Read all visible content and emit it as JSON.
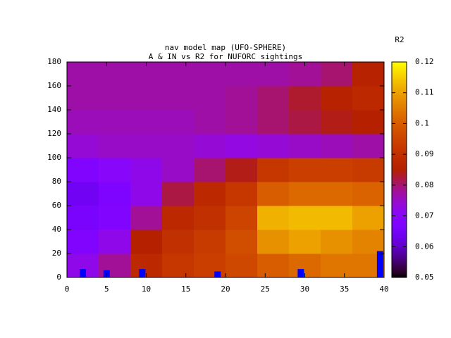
{
  "chart_data": {
    "type": "heatmap",
    "title": "nav model map (UFO-SPHERE)",
    "subtitle": "A & IN vs R2 for NUFORC sightings",
    "colorbar_label": "R2",
    "colormap": "gnuplot",
    "xbins": [
      0,
      4,
      8,
      12,
      16,
      20,
      24,
      28,
      32,
      36,
      40
    ],
    "ybins": [
      0,
      20,
      40,
      60,
      80,
      100,
      120,
      140,
      160,
      180
    ],
    "z": [
      [
        0.072,
        0.078,
        0.088,
        0.092,
        0.094,
        0.096,
        0.1,
        0.102,
        0.104,
        0.104
      ],
      [
        0.068,
        0.072,
        0.085,
        0.09,
        0.093,
        0.097,
        0.108,
        0.11,
        0.108,
        0.106
      ],
      [
        0.066,
        0.068,
        0.078,
        0.088,
        0.09,
        0.095,
        0.112,
        0.113,
        0.113,
        0.11
      ],
      [
        0.064,
        0.067,
        0.072,
        0.082,
        0.088,
        0.092,
        0.1,
        0.102,
        0.102,
        0.101
      ],
      [
        0.068,
        0.07,
        0.072,
        0.075,
        0.08,
        0.084,
        0.092,
        0.094,
        0.094,
        0.093
      ],
      [
        0.074,
        0.075,
        0.075,
        0.075,
        0.074,
        0.073,
        0.074,
        0.075,
        0.076,
        0.077
      ],
      [
        0.076,
        0.076,
        0.076,
        0.076,
        0.077,
        0.078,
        0.08,
        0.082,
        0.084,
        0.085
      ],
      [
        0.077,
        0.077,
        0.077,
        0.077,
        0.077,
        0.078,
        0.08,
        0.083,
        0.086,
        0.088
      ],
      [
        0.077,
        0.077,
        0.077,
        0.077,
        0.077,
        0.077,
        0.077,
        0.078,
        0.08,
        0.086
      ]
    ],
    "zlim": [
      0.05,
      0.12
    ],
    "zticks": [
      0.05,
      0.06,
      0.07,
      0.08,
      0.09,
      0.1,
      0.11,
      0.12
    ],
    "bars": {
      "color": "#0000ff",
      "x": [
        2,
        5,
        9.5,
        19,
        29.5,
        39.5
      ],
      "values": [
        7,
        6,
        7,
        5,
        7,
        22
      ]
    },
    "xlim": [
      0,
      40
    ],
    "xticks": [
      0,
      5,
      10,
      15,
      20,
      25,
      30,
      35,
      40
    ],
    "ylim": [
      0,
      180
    ],
    "yticks": [
      0,
      20,
      40,
      60,
      80,
      100,
      120,
      140,
      160,
      180
    ]
  }
}
